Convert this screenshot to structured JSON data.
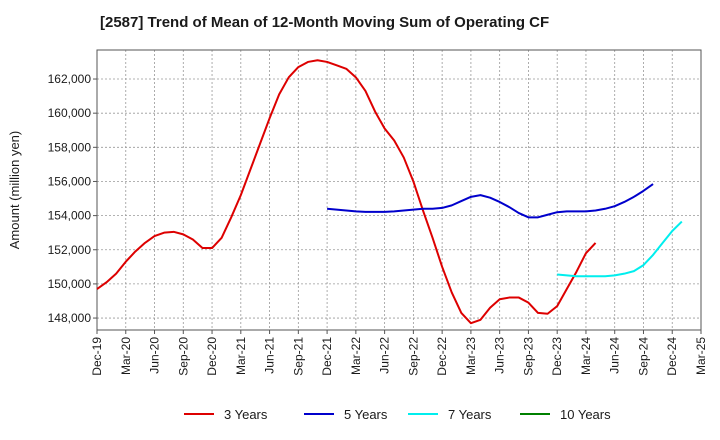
{
  "chart_data": {
    "type": "line",
    "title": "[2587]  Trend of Mean of 12-Month Moving Sum of Operating CF",
    "xlabel": "",
    "ylabel": "Amount (million yen)",
    "ylim": [
      147300,
      163700
    ],
    "y_ticks": [
      148000,
      150000,
      152000,
      154000,
      156000,
      158000,
      160000,
      162000
    ],
    "y_tick_labels": [
      "148,000",
      "150,000",
      "152,000",
      "154,000",
      "156,000",
      "158,000",
      "160,000",
      "162,000"
    ],
    "x_start": "Dec-19",
    "x_tick_labels": [
      "Dec-19",
      "Mar-20",
      "Jun-20",
      "Sep-20",
      "Dec-20",
      "Mar-21",
      "Jun-21",
      "Sep-21",
      "Dec-21",
      "Mar-22",
      "Jun-22",
      "Sep-22",
      "Dec-22",
      "Mar-23",
      "Jun-23",
      "Sep-23",
      "Dec-23",
      "Mar-24",
      "Jun-24",
      "Sep-24",
      "Dec-24",
      "Mar-25"
    ],
    "grid": true,
    "legend_position": "bottom",
    "series": [
      {
        "name": "3 Years",
        "color": "#dd0000",
        "start_index": 0,
        "values": [
          149700,
          150100,
          150600,
          151300,
          151900,
          152400,
          152800,
          153000,
          153050,
          152900,
          152600,
          152100,
          152100,
          152700,
          153900,
          155200,
          156700,
          158200,
          159700,
          161100,
          162100,
          162700,
          163000,
          163100,
          163000,
          162800,
          162600,
          162100,
          161300,
          160100,
          159100,
          158400,
          157400,
          156000,
          154300,
          152700,
          151000,
          149500,
          148300,
          147700,
          147900,
          148600,
          149100,
          149200,
          149200,
          148900,
          148300,
          148250,
          148700,
          149700,
          150700,
          151800,
          152400
        ]
      },
      {
        "name": "5 Years",
        "color": "#0000cc",
        "start_index": 24,
        "values": [
          154400,
          154350,
          154300,
          154250,
          154220,
          154220,
          154220,
          154250,
          154300,
          154350,
          154400,
          154400,
          154450,
          154600,
          154850,
          155100,
          155200,
          155050,
          154800,
          154500,
          154150,
          153900,
          153900,
          154050,
          154200,
          154250,
          154250,
          154250,
          154300,
          154400,
          154550,
          154800,
          155100,
          155450,
          155850
        ]
      },
      {
        "name": "7 Years",
        "color": "#00eeee",
        "start_index": 48,
        "values": [
          150550,
          150500,
          150450,
          150450,
          150450,
          150450,
          150500,
          150600,
          150750,
          151100,
          151700,
          152400,
          153100,
          153650
        ]
      },
      {
        "name": "10 Years",
        "color": "#008000",
        "start_index": 0,
        "values": []
      }
    ]
  }
}
